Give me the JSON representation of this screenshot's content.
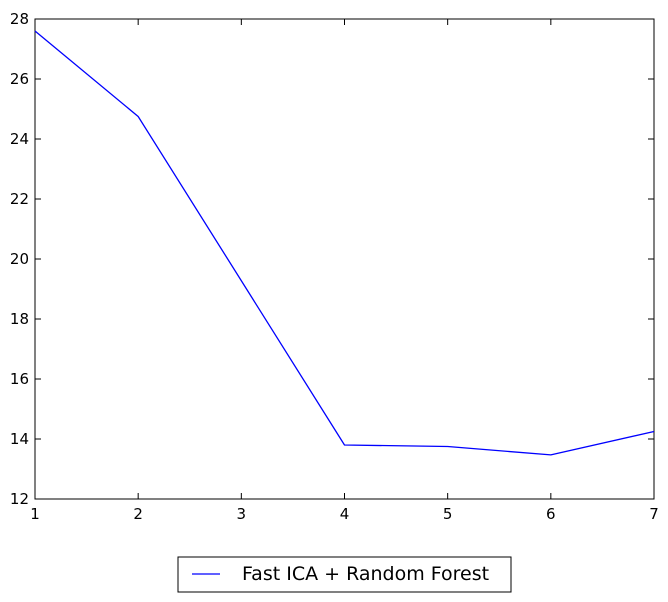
{
  "chart_data": {
    "type": "line",
    "x": [
      1,
      2,
      3,
      4,
      5,
      6,
      7
    ],
    "series": [
      {
        "name": "Fast ICA + Random Forest",
        "color": "#0000ff",
        "values": [
          27.6,
          24.75,
          null,
          13.8,
          13.75,
          13.47,
          14.25
        ]
      }
    ],
    "xlim": [
      1,
      7
    ],
    "ylim": [
      12,
      28
    ],
    "xticks": [
      1,
      2,
      3,
      4,
      5,
      6,
      7
    ],
    "yticks": [
      12,
      14,
      16,
      18,
      20,
      22,
      24,
      26,
      28
    ],
    "grid": false,
    "legend_position": "bottom-center"
  }
}
